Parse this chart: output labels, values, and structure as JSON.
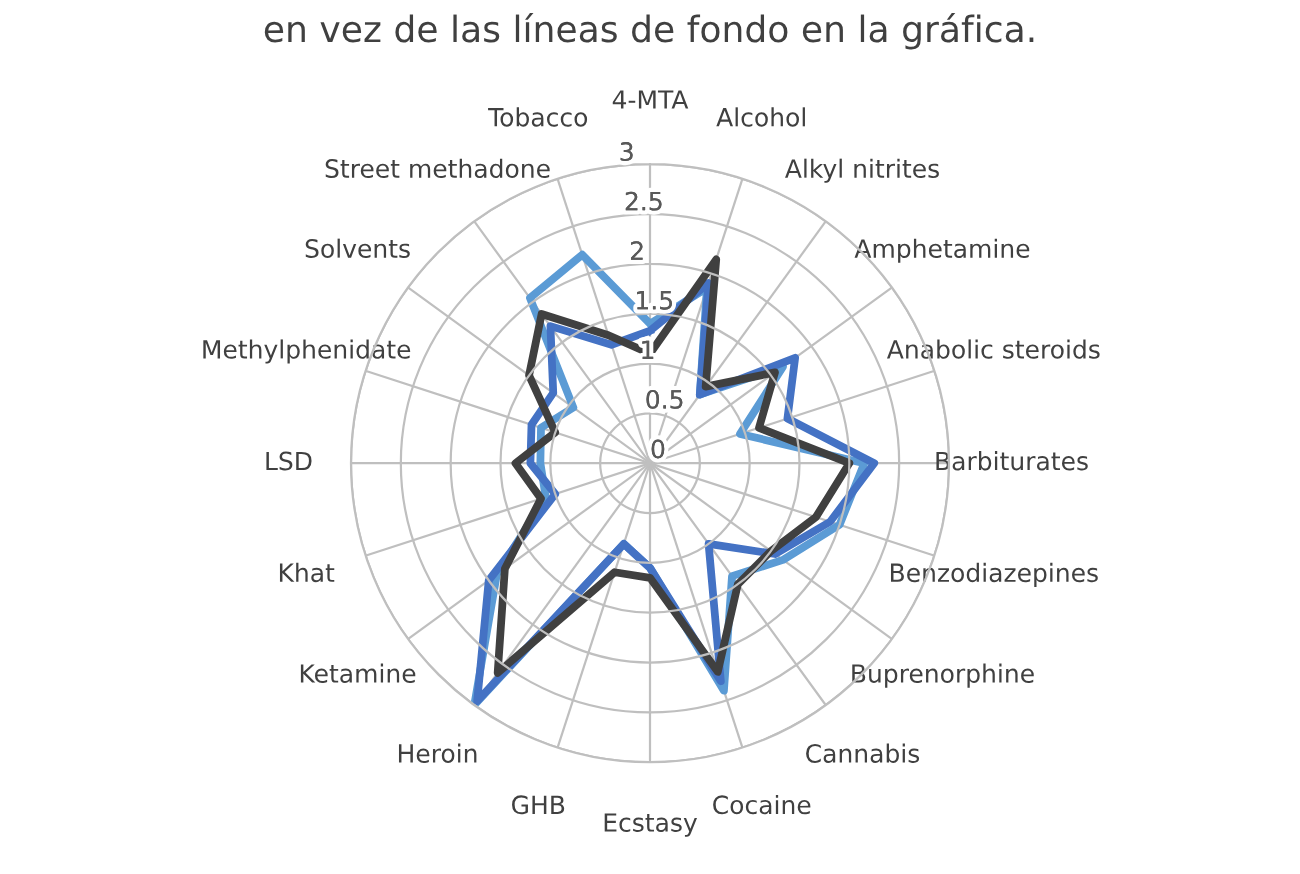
{
  "chart_data": {
    "type": "radar",
    "annotations": [
      "en vez de las líneas de fondo en la gráfica."
    ],
    "categories": [
      "4-MTA",
      "Alcohol",
      "Alkyl nitrites",
      "Amphetamine",
      "Anabolic steroids",
      "Barbiturates",
      "Benzodiazepines",
      "Buprenorphine",
      "Cannabis",
      "Cocaine",
      "Ecstasy",
      "GHB",
      "Heroin",
      "Ketamine",
      "Khat",
      "LSD",
      "Methylphenidate",
      "Solvents",
      "Street methadone",
      "Tobacco"
    ],
    "series": [
      {
        "color": "#5b9bd5",
        "values": [
          1.4,
          1.85,
          0.85,
          1.65,
          0.95,
          2.15,
          2.0,
          1.65,
          1.4,
          2.4,
          1.05,
          0.85,
          3.0,
          1.9,
          1.1,
          1.1,
          1.15,
          0.95,
          2.05,
          2.2
        ]
      },
      {
        "color": "#4472c4",
        "values": [
          1.33,
          1.9,
          0.85,
          1.8,
          1.45,
          2.25,
          1.9,
          1.55,
          1.0,
          2.3,
          1.05,
          0.85,
          2.95,
          2.0,
          1.0,
          1.2,
          1.25,
          1.2,
          1.7,
          1.25
        ]
      },
      {
        "color": "#404040",
        "values": [
          1.1,
          2.15,
          0.95,
          1.55,
          1.15,
          2.0,
          1.75,
          1.5,
          1.5,
          2.2,
          1.15,
          1.15,
          2.6,
          1.8,
          1.15,
          1.35,
          1.0,
          1.5,
          1.85,
          1.35
        ]
      }
    ],
    "ylim": [
      0,
      3
    ],
    "yticks": [
      0,
      0.5,
      1,
      1.5,
      2,
      2.5,
      3
    ],
    "grid": true,
    "marker": "none",
    "line_style": "solid"
  }
}
